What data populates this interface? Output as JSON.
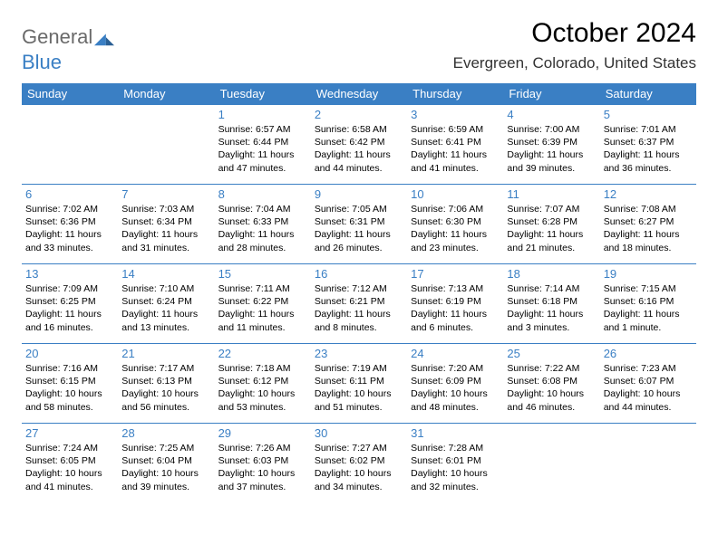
{
  "logo": {
    "word1": "General",
    "word2": "Blue"
  },
  "title": "October 2024",
  "location": "Evergreen, Colorado, United States",
  "colors": {
    "accent": "#3a7fc4",
    "logo_gray": "#6a6a6a",
    "background": "#ffffff",
    "text": "#000000"
  },
  "weekdays": [
    "Sunday",
    "Monday",
    "Tuesday",
    "Wednesday",
    "Thursday",
    "Friday",
    "Saturday"
  ],
  "grid": {
    "rows": 5,
    "cols": 7,
    "first_weekday_index": 2,
    "days_in_month": 31
  },
  "days": [
    {
      "n": 1,
      "sr": "6:57 AM",
      "ss": "6:44 PM",
      "dl": "11 hours and 47 minutes."
    },
    {
      "n": 2,
      "sr": "6:58 AM",
      "ss": "6:42 PM",
      "dl": "11 hours and 44 minutes."
    },
    {
      "n": 3,
      "sr": "6:59 AM",
      "ss": "6:41 PM",
      "dl": "11 hours and 41 minutes."
    },
    {
      "n": 4,
      "sr": "7:00 AM",
      "ss": "6:39 PM",
      "dl": "11 hours and 39 minutes."
    },
    {
      "n": 5,
      "sr": "7:01 AM",
      "ss": "6:37 PM",
      "dl": "11 hours and 36 minutes."
    },
    {
      "n": 6,
      "sr": "7:02 AM",
      "ss": "6:36 PM",
      "dl": "11 hours and 33 minutes."
    },
    {
      "n": 7,
      "sr": "7:03 AM",
      "ss": "6:34 PM",
      "dl": "11 hours and 31 minutes."
    },
    {
      "n": 8,
      "sr": "7:04 AM",
      "ss": "6:33 PM",
      "dl": "11 hours and 28 minutes."
    },
    {
      "n": 9,
      "sr": "7:05 AM",
      "ss": "6:31 PM",
      "dl": "11 hours and 26 minutes."
    },
    {
      "n": 10,
      "sr": "7:06 AM",
      "ss": "6:30 PM",
      "dl": "11 hours and 23 minutes."
    },
    {
      "n": 11,
      "sr": "7:07 AM",
      "ss": "6:28 PM",
      "dl": "11 hours and 21 minutes."
    },
    {
      "n": 12,
      "sr": "7:08 AM",
      "ss": "6:27 PM",
      "dl": "11 hours and 18 minutes."
    },
    {
      "n": 13,
      "sr": "7:09 AM",
      "ss": "6:25 PM",
      "dl": "11 hours and 16 minutes."
    },
    {
      "n": 14,
      "sr": "7:10 AM",
      "ss": "6:24 PM",
      "dl": "11 hours and 13 minutes."
    },
    {
      "n": 15,
      "sr": "7:11 AM",
      "ss": "6:22 PM",
      "dl": "11 hours and 11 minutes."
    },
    {
      "n": 16,
      "sr": "7:12 AM",
      "ss": "6:21 PM",
      "dl": "11 hours and 8 minutes."
    },
    {
      "n": 17,
      "sr": "7:13 AM",
      "ss": "6:19 PM",
      "dl": "11 hours and 6 minutes."
    },
    {
      "n": 18,
      "sr": "7:14 AM",
      "ss": "6:18 PM",
      "dl": "11 hours and 3 minutes."
    },
    {
      "n": 19,
      "sr": "7:15 AM",
      "ss": "6:16 PM",
      "dl": "11 hours and 1 minute."
    },
    {
      "n": 20,
      "sr": "7:16 AM",
      "ss": "6:15 PM",
      "dl": "10 hours and 58 minutes."
    },
    {
      "n": 21,
      "sr": "7:17 AM",
      "ss": "6:13 PM",
      "dl": "10 hours and 56 minutes."
    },
    {
      "n": 22,
      "sr": "7:18 AM",
      "ss": "6:12 PM",
      "dl": "10 hours and 53 minutes."
    },
    {
      "n": 23,
      "sr": "7:19 AM",
      "ss": "6:11 PM",
      "dl": "10 hours and 51 minutes."
    },
    {
      "n": 24,
      "sr": "7:20 AM",
      "ss": "6:09 PM",
      "dl": "10 hours and 48 minutes."
    },
    {
      "n": 25,
      "sr": "7:22 AM",
      "ss": "6:08 PM",
      "dl": "10 hours and 46 minutes."
    },
    {
      "n": 26,
      "sr": "7:23 AM",
      "ss": "6:07 PM",
      "dl": "10 hours and 44 minutes."
    },
    {
      "n": 27,
      "sr": "7:24 AM",
      "ss": "6:05 PM",
      "dl": "10 hours and 41 minutes."
    },
    {
      "n": 28,
      "sr": "7:25 AM",
      "ss": "6:04 PM",
      "dl": "10 hours and 39 minutes."
    },
    {
      "n": 29,
      "sr": "7:26 AM",
      "ss": "6:03 PM",
      "dl": "10 hours and 37 minutes."
    },
    {
      "n": 30,
      "sr": "7:27 AM",
      "ss": "6:02 PM",
      "dl": "10 hours and 34 minutes."
    },
    {
      "n": 31,
      "sr": "7:28 AM",
      "ss": "6:01 PM",
      "dl": "10 hours and 32 minutes."
    }
  ],
  "labels": {
    "sunrise": "Sunrise:",
    "sunset": "Sunset:",
    "daylight": "Daylight:"
  }
}
